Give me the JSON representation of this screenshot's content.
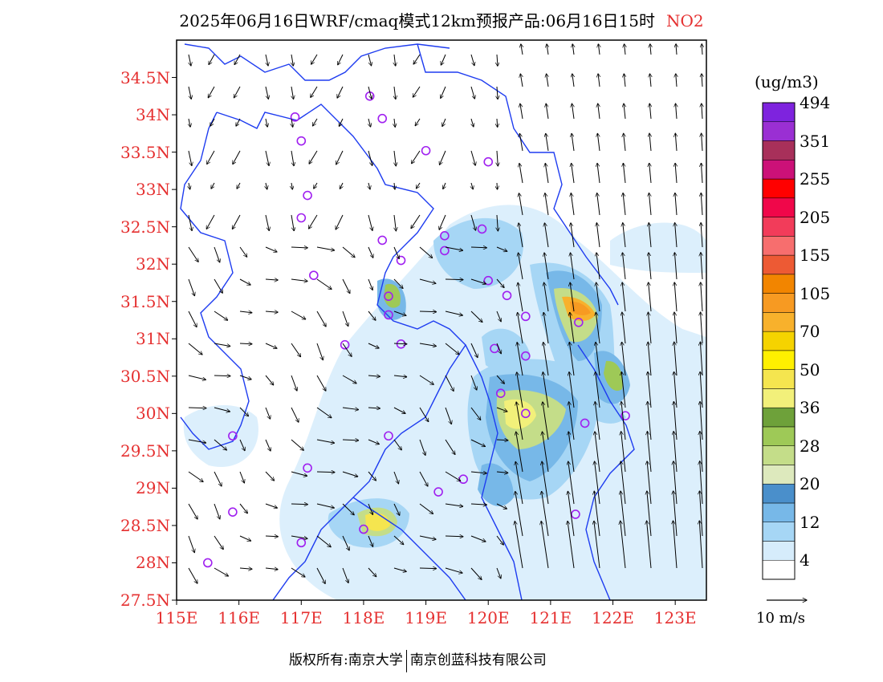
{
  "title": {
    "text": "2025年06月16日WRF/cmaq模式12km预报产品:06月16日15时",
    "species": "NO2"
  },
  "footer": {
    "left": "版权所有:南京大学",
    "right": "南京创蓝科技有限公司"
  },
  "map": {
    "lon_range": [
      115,
      123.5
    ],
    "lat_range": [
      27.5,
      35
    ],
    "lat_ticks": [
      "27.5N",
      "28N",
      "28.5N",
      "29N",
      "29.5N",
      "30N",
      "30.5N",
      "31N",
      "31.5N",
      "32N",
      "32.5N",
      "33N",
      "33.5N",
      "34N",
      "34.5N"
    ],
    "lon_ticks": [
      "115E",
      "116E",
      "117E",
      "118E",
      "119E",
      "120E",
      "121E",
      "122E",
      "123E"
    ],
    "label_color": "#e53030",
    "boundary_color": "#1e3cf0",
    "site_marker_color": "#a020f0"
  },
  "colorbar": {
    "unit": "(ug/m3)",
    "labels": [
      "4",
      "12",
      "20",
      "28",
      "36",
      "50",
      "70",
      "105",
      "155",
      "205",
      "255",
      "351",
      "494"
    ],
    "colors": [
      "#ffffff",
      "#d6ecfb",
      "#a6d6f5",
      "#77b8e8",
      "#4a8fcb",
      "#dde9bd",
      "#c4dd89",
      "#9ec957",
      "#6ea13a",
      "#f2f07a",
      "#f5e54f",
      "#fff000",
      "#f5d300",
      "#f8b12c",
      "#f79a22",
      "#f28500",
      "#ed5a34",
      "#f76e6e",
      "#f23c5a",
      "#f0074a",
      "#ff0000",
      "#cc1178",
      "#a8305a",
      "#9a2fd3",
      "#7e23de"
    ]
  },
  "wind": {
    "reference_label": "10 m/s"
  },
  "sites": [
    [
      118.1,
      34.25
    ],
    [
      116.9,
      33.97
    ],
    [
      118.3,
      33.95
    ],
    [
      117.0,
      33.65
    ],
    [
      119.0,
      33.52
    ],
    [
      120.0,
      33.37
    ],
    [
      117.1,
      32.92
    ],
    [
      117.0,
      32.62
    ],
    [
      118.3,
      32.32
    ],
    [
      119.3,
      32.38
    ],
    [
      119.9,
      32.47
    ],
    [
      119.3,
      32.18
    ],
    [
      118.6,
      32.05
    ],
    [
      117.2,
      31.85
    ],
    [
      120.0,
      31.78
    ],
    [
      120.3,
      31.58
    ],
    [
      118.4,
      31.57
    ],
    [
      118.4,
      31.32
    ],
    [
      120.6,
      31.3
    ],
    [
      121.45,
      31.22
    ],
    [
      117.7,
      30.92
    ],
    [
      118.6,
      30.93
    ],
    [
      120.1,
      30.87
    ],
    [
      120.6,
      30.77
    ],
    [
      120.2,
      30.27
    ],
    [
      120.6,
      30.0
    ],
    [
      121.55,
      29.87
    ],
    [
      122.2,
      29.97
    ],
    [
      115.9,
      29.7
    ],
    [
      118.4,
      29.7
    ],
    [
      117.1,
      29.27
    ],
    [
      119.2,
      28.95
    ],
    [
      119.6,
      29.12
    ],
    [
      115.9,
      28.68
    ],
    [
      121.4,
      28.65
    ],
    [
      118.0,
      28.45
    ],
    [
      117.0,
      28.27
    ],
    [
      115.5,
      28.0
    ]
  ]
}
